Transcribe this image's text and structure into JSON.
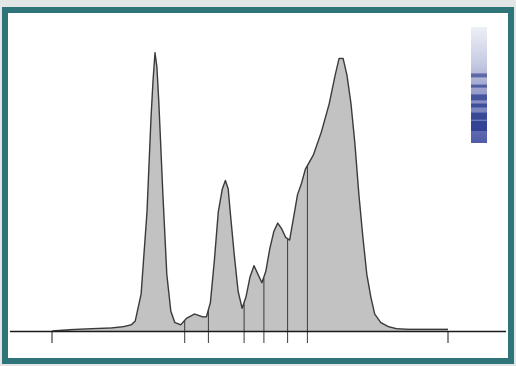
{
  "chart_data": {
    "type": "area",
    "title": "",
    "xlabel": "",
    "ylabel": "",
    "x_range": [
      0,
      100
    ],
    "y_range": [
      0,
      100
    ],
    "grid": false,
    "legend": "none",
    "fill_color": "#c2c2c2",
    "line_color": "#3a3a3a",
    "axis_color": "#1a1a1a",
    "frame_color": "#2f7479",
    "band_color": "#2e3f8f",
    "profile": [
      [
        0,
        0
      ],
      [
        5,
        0.5
      ],
      [
        10,
        0.8
      ],
      [
        15,
        1.1
      ],
      [
        18,
        1.5
      ],
      [
        20,
        2.2
      ],
      [
        21,
        3.5
      ],
      [
        22.5,
        13
      ],
      [
        24,
        42
      ],
      [
        25,
        75
      ],
      [
        25.5,
        88
      ],
      [
        26,
        98
      ],
      [
        26.5,
        93
      ],
      [
        27,
        80
      ],
      [
        28,
        48
      ],
      [
        29,
        20
      ],
      [
        30,
        7
      ],
      [
        31,
        3
      ],
      [
        32.5,
        2.2
      ],
      [
        34,
        4.5
      ],
      [
        36,
        6
      ],
      [
        38,
        5
      ],
      [
        39,
        5
      ],
      [
        40,
        10
      ],
      [
        41,
        25
      ],
      [
        42,
        42
      ],
      [
        43,
        50
      ],
      [
        43.8,
        53
      ],
      [
        44.5,
        50
      ],
      [
        45,
        42
      ],
      [
        46,
        27
      ],
      [
        47,
        14
      ],
      [
        48,
        8
      ],
      [
        49,
        12
      ],
      [
        50,
        19
      ],
      [
        51,
        23
      ],
      [
        52,
        20
      ],
      [
        53,
        17
      ],
      [
        54,
        21
      ],
      [
        55,
        29
      ],
      [
        56,
        35
      ],
      [
        57,
        38
      ],
      [
        58,
        36
      ],
      [
        59,
        33
      ],
      [
        60,
        32
      ],
      [
        61,
        40
      ],
      [
        62,
        48
      ],
      [
        63,
        52
      ],
      [
        64,
        57
      ],
      [
        66,
        62
      ],
      [
        68,
        70
      ],
      [
        70,
        80
      ],
      [
        71.5,
        90
      ],
      [
        72.5,
        96
      ],
      [
        73.5,
        96
      ],
      [
        74.5,
        90
      ],
      [
        75.5,
        80
      ],
      [
        76.5,
        66
      ],
      [
        77.5,
        48
      ],
      [
        78.5,
        33
      ],
      [
        79.5,
        20
      ],
      [
        80.5,
        12
      ],
      [
        81.5,
        6
      ],
      [
        83,
        3
      ],
      [
        85,
        1.5
      ],
      [
        87,
        0.8
      ],
      [
        90,
        0.6
      ],
      [
        100,
        0.6
      ]
    ],
    "dividers": [
      33.5,
      39.5,
      48.5,
      53.5,
      59.5,
      64.5
    ],
    "bands": [
      {
        "x": 0,
        "level": 0.12
      },
      {
        "x": 0,
        "level": 0.28
      },
      {
        "x": 0,
        "level": 0.42
      },
      {
        "x": 0,
        "level": 0.55
      },
      {
        "x": 0,
        "level": 0.68
      },
      {
        "x": 0,
        "level": 0.8
      }
    ]
  }
}
